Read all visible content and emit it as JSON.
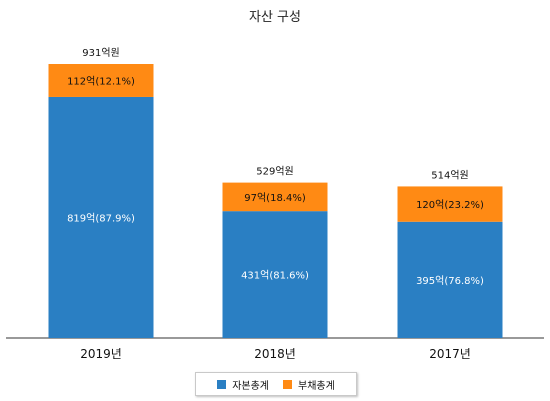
{
  "chart_data": {
    "type": "bar",
    "stacked": true,
    "title": "자산 구성",
    "xlabel": "",
    "ylabel": "",
    "ylim": [
      0,
      931
    ],
    "grid": false,
    "legend_position": "bottom",
    "categories": [
      "2019년",
      "2018년",
      "2017년"
    ],
    "totals": [
      931,
      529,
      514
    ],
    "total_labels": [
      "931억원",
      "529억원",
      "514억원"
    ],
    "series": [
      {
        "name": "자본총계",
        "color": "#2a7fc3",
        "values": [
          819,
          431,
          395
        ],
        "labels": [
          "819억(87.9%)",
          "431억(81.6%)",
          "395억(76.8%)"
        ]
      },
      {
        "name": "부채총계",
        "color": "#ff8a14",
        "values": [
          112,
          97,
          120
        ],
        "labels": [
          "112억(12.1%)",
          "97억(18.4%)",
          "120억(23.2%)"
        ]
      }
    ]
  }
}
